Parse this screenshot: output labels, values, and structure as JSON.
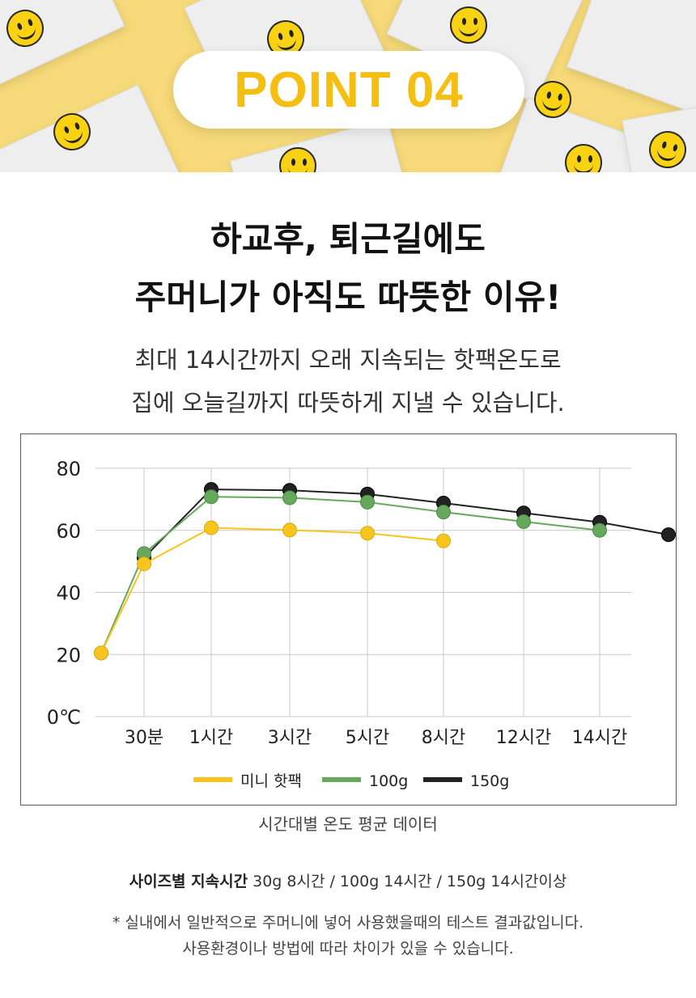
{
  "banner": {
    "badge": "POINT 04"
  },
  "headline": {
    "line1": "하교후, 퇴근길에도",
    "line2": "주머니가 아직도 따뜻한 이유!"
  },
  "subtext": {
    "line1": "최대 14시간까지 오래 지속되는 핫팩온도로",
    "line2": "집에 오늘길까지 따뜻하게 지낼 수 있습니다."
  },
  "chart_caption": "시간대별 온도 평균 데이터",
  "duration": {
    "label": "사이즈별 지속시간",
    "text": "30g 8시간 / 100g 14시간 / 150g 14시간이상"
  },
  "notes": {
    "line1": "* 실내에서 일반적으로 주머니에 넣어 사용했을때의 테스트 결과값입니다.",
    "line2": "사용환경이나 방법에 따라 차이가 있을 수 있습니다."
  },
  "colors": {
    "accent": "#f4bf12",
    "mini": "#f8c51c",
    "g100": "#66a85c",
    "g150": "#222222",
    "grid": "#c8c8c8"
  },
  "chart_data": {
    "type": "line",
    "categories": [
      "",
      "30분",
      "1시간",
      "3시간",
      "5시간",
      "8시간",
      "12시간",
      "14시간",
      ""
    ],
    "y_ticks": [
      "0℃",
      "20",
      "40",
      "60",
      "80"
    ],
    "ylim": [
      0,
      80
    ],
    "grid": true,
    "legend_position": "bottom",
    "series": [
      {
        "name": "미니 핫팩",
        "color": "#f8c51c",
        "values": [
          20.5,
          49.2,
          60.8,
          60.1,
          59.1,
          56.6,
          null,
          null,
          null
        ]
      },
      {
        "name": "100g",
        "color": "#66a85c",
        "values": [
          20.5,
          52.5,
          70.8,
          70.5,
          69.1,
          65.9,
          62.8,
          60.0,
          null
        ]
      },
      {
        "name": "150g",
        "color": "#222222",
        "values": [
          null,
          51.2,
          73.2,
          72.9,
          71.7,
          68.8,
          65.6,
          62.6,
          58.6
        ]
      }
    ]
  }
}
